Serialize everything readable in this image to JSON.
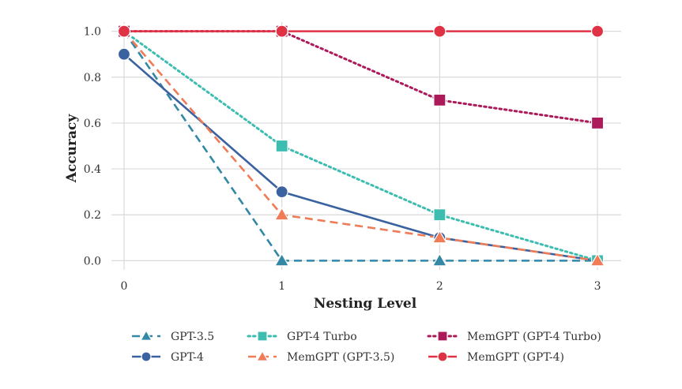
{
  "chart_data": {
    "type": "line",
    "xlabel": "Nesting Level",
    "ylabel": "Accuracy",
    "x": [
      0,
      1,
      2,
      3
    ],
    "xlim": [
      -0.08,
      3.15
    ],
    "ylim": [
      -0.04,
      1.04
    ],
    "xticks": [
      0,
      1,
      2,
      3
    ],
    "yticks": [
      0.0,
      0.2,
      0.4,
      0.6,
      0.8,
      1.0
    ],
    "ytick_labels": [
      "0.0",
      "0.2",
      "0.4",
      "0.6",
      "0.8",
      "1.0"
    ],
    "grid": true,
    "legend_position": "bottom",
    "series": [
      {
        "name": "GPT-3.5",
        "values": [
          1.0,
          0.0,
          0.0,
          0.0
        ],
        "color": "#3288a5",
        "dash": "dashed",
        "marker": "triangle"
      },
      {
        "name": "GPT-4",
        "values": [
          0.9,
          0.3,
          0.1,
          0.0
        ],
        "color": "#3a62a0",
        "dash": "solid",
        "marker": "circle"
      },
      {
        "name": "GPT-4 Turbo",
        "values": [
          1.0,
          0.5,
          0.2,
          0.0
        ],
        "color": "#3dbdb0",
        "dash": "dotted",
        "marker": "square"
      },
      {
        "name": "MemGPT (GPT-3.5)",
        "values": [
          1.0,
          0.2,
          0.1,
          0.0
        ],
        "color": "#ef7b57",
        "dash": "dashed",
        "marker": "triangle"
      },
      {
        "name": "MemGPT (GPT-4 Turbo)",
        "values": [
          1.0,
          1.0,
          0.7,
          0.6
        ],
        "color": "#ad1a5a",
        "dash": "dotted",
        "marker": "square"
      },
      {
        "name": "MemGPT (GPT-4)",
        "values": [
          1.0,
          1.0,
          1.0,
          1.0
        ],
        "color": "#df3345",
        "dash": "solid",
        "marker": "circle"
      }
    ]
  }
}
